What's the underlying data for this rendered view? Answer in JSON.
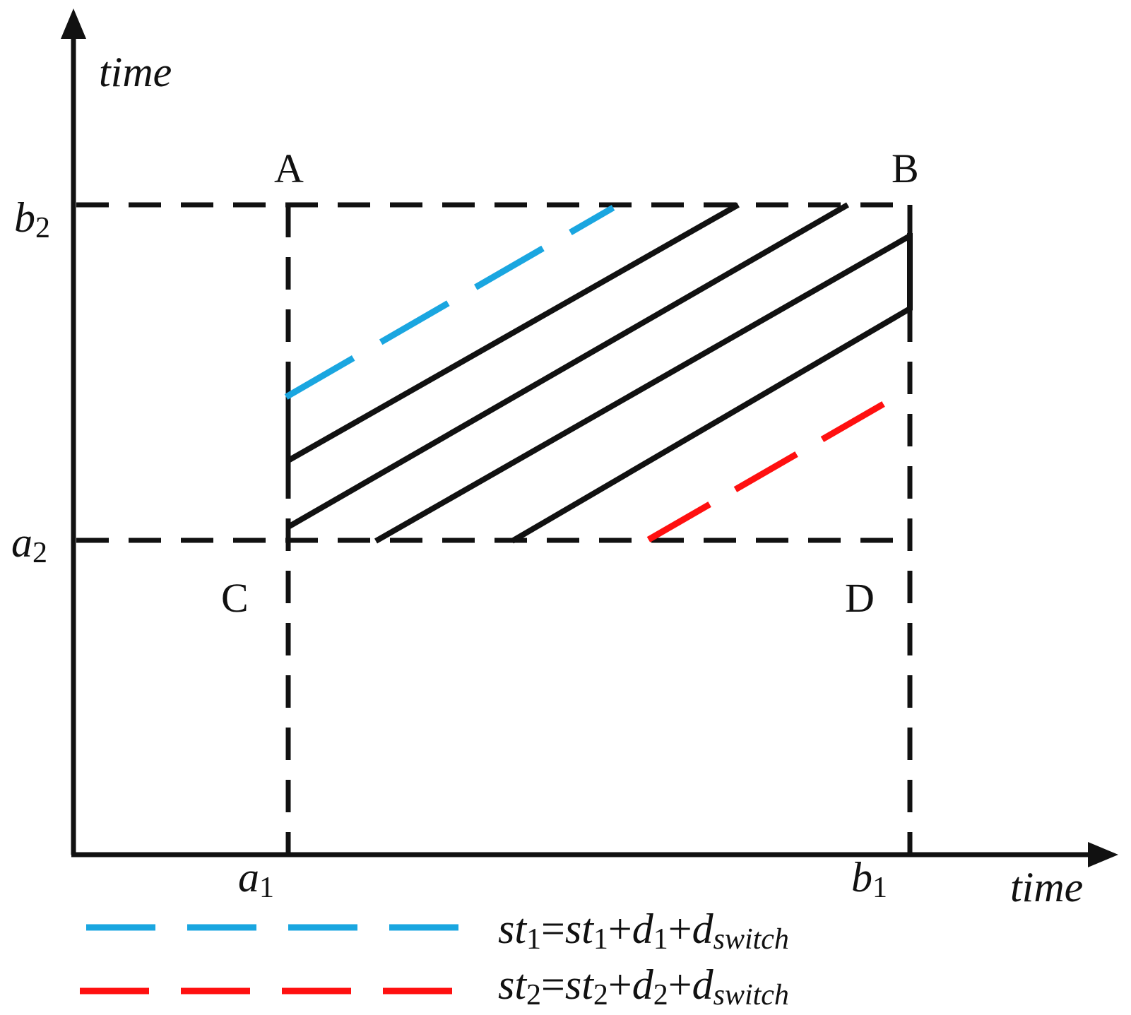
{
  "axes": {
    "x_label": "time",
    "y_label": "time",
    "x_ticks": [
      {
        "main": "a",
        "sub": "1"
      },
      {
        "main": "b",
        "sub": "1"
      }
    ],
    "y_ticks": [
      {
        "main": "b",
        "sub": "2"
      },
      {
        "main": "a",
        "sub": "2"
      }
    ]
  },
  "corners": {
    "top_left": "A",
    "top_right": "B",
    "bottom_left": "C",
    "bottom_right": "D"
  },
  "legend": [
    {
      "color": "#1aa6e0",
      "lhs": "st",
      "lhs_sub": "1",
      "eq": "=",
      "t1": "st",
      "t1_sub": "1",
      "plus1": "+",
      "t2": "d",
      "t2_sub": "1",
      "plus2": "+",
      "t3": "d",
      "t3_sub": "switch"
    },
    {
      "color": "#ff1010",
      "lhs": "st",
      "lhs_sub": "2",
      "eq": "=",
      "t1": "st",
      "t1_sub": "2",
      "plus1": "+",
      "t2": "d",
      "t2_sub": "2",
      "plus2": "+",
      "t3": "d",
      "t3_sub": "switch"
    }
  ],
  "colors": {
    "axis": "#111111",
    "blue_dash": "#1aa6e0",
    "red_dash": "#ff1010"
  }
}
